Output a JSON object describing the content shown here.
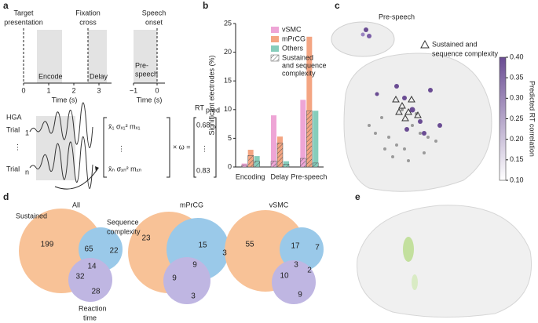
{
  "panel_labels": [
    "a",
    "b",
    "c",
    "d",
    "e"
  ],
  "panel_a": {
    "phases": [
      [
        "Target",
        "presentation"
      ],
      [
        "Fixation",
        "cross"
      ],
      [
        "Speech",
        "onset"
      ]
    ],
    "windows": [
      [
        "Encode"
      ],
      [
        "Delay"
      ],
      [
        "Pre-",
        "speech"
      ]
    ],
    "time_label": "Time (s)",
    "ticks": [
      "0",
      "1",
      "2",
      "3"
    ],
    "ticks_speech": [
      "−1",
      "0"
    ],
    "signal": "HGA",
    "trials": [
      [
        "Trial",
        "1"
      ],
      [
        "Trial",
        "n"
      ]
    ],
    "matrix_rows": [
      "x̄₁  σₓ₁²  mₓ₁",
      "x̄ₙ  σₓₙ²  mₓₙ"
    ],
    "operator": "× ω =",
    "output": [
      "RT",
      "pred"
    ],
    "outputs": [
      "0.68",
      "0.83"
    ]
  },
  "panel_c": {
    "title": "Pre-speech",
    "legend": [
      "Sustained and",
      "sequence complexity"
    ]
  },
  "panel_d": {
    "labels": {
      "sustained": "Sustained",
      "sequence": [
        "Sequence",
        "complexity"
      ],
      "reaction": [
        "Reaction",
        "time"
      ]
    },
    "venns": [
      {
        "title": "All",
        "counts": [
          "199",
          "65",
          "22",
          "14",
          "32",
          "28"
        ]
      },
      {
        "title": "mPrCG",
        "counts": [
          "23",
          "15",
          "3",
          "9",
          "9",
          "3"
        ]
      },
      {
        "title": "vSMC",
        "counts": [
          "55",
          "17",
          "7",
          "3",
          "2",
          "10",
          "9"
        ]
      }
    ]
  },
  "chart_data": [
    {
      "type": "bar",
      "ylabel": "Significant electrodes (%)",
      "categories": [
        "Encoding",
        "Delay",
        "Pre-speech"
      ],
      "series": [
        {
          "name": "vSMC",
          "color": "#eea5d6",
          "values": [
            0.6,
            9.0,
            11.7
          ],
          "sustained_values": [
            0.3,
            1.0,
            1.5
          ]
        },
        {
          "name": "mPrCG",
          "color": "#f4a582",
          "values": [
            3.0,
            5.3,
            22.7
          ],
          "sustained_values": [
            2.0,
            4.2,
            9.8
          ]
        },
        {
          "name": "Others",
          "color": "#86cdbb",
          "values": [
            1.9,
            1.0,
            9.8
          ],
          "sustained_values": [
            1.0,
            0.5,
            0.7
          ]
        }
      ],
      "hatch_name": [
        "Sustained",
        "and sequence",
        "complexity"
      ],
      "ylim": [
        0,
        25
      ],
      "yticks": [
        0,
        5,
        10,
        15,
        20,
        25
      ]
    },
    {
      "type": "colorbar",
      "label": "Predicted RT correlation",
      "colors": [
        "#ffffff",
        "#6a4c93"
      ],
      "ylim": [
        0.1,
        0.4
      ],
      "yticks": [
        {
          "value": 0.1,
          "label": "0.10"
        },
        {
          "value": 0.15,
          "label": "0.15"
        },
        {
          "value": 0.2,
          "label": "0.20"
        },
        {
          "value": 0.25,
          "label": "0.25"
        },
        {
          "value": 0.3,
          "label": "0.30"
        },
        {
          "value": 0.35,
          "label": "0.35"
        },
        {
          "value": 0.4,
          "label": "0.40"
        }
      ]
    }
  ]
}
